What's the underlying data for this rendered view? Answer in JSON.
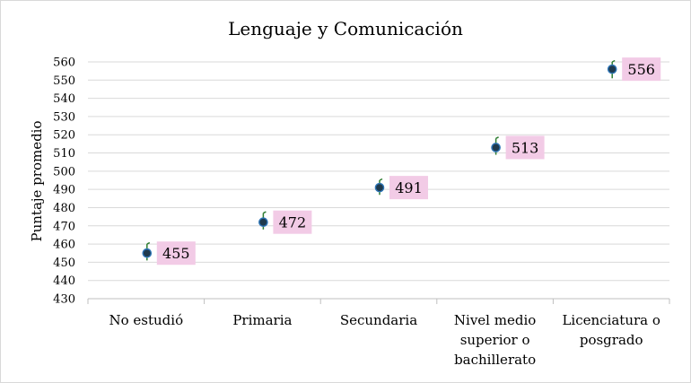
{
  "chart_data": {
    "type": "scatter",
    "title": "Lenguaje y Comunicación",
    "xlabel": "",
    "ylabel": "Puntaje promedio",
    "ylim": [
      430,
      560
    ],
    "yticks": [
      430,
      440,
      450,
      460,
      470,
      480,
      490,
      500,
      510,
      520,
      530,
      540,
      550,
      560
    ],
    "categories": [
      [
        "No estudió"
      ],
      [
        "Primaria"
      ],
      [
        "Secundaria"
      ],
      [
        "Nivel medio",
        "superior o",
        "bachillerato"
      ],
      [
        "Licenciatura o",
        "posgrado"
      ]
    ],
    "values": [
      455,
      472,
      491,
      513,
      556
    ],
    "error_low": [
      451,
      468,
      487,
      509,
      551
    ],
    "error_high": [
      460,
      477,
      495,
      518,
      560
    ],
    "grid": true,
    "colors": {
      "marker_fill": "#1f3a4d",
      "marker_edge": "#2e75b6",
      "error_bar": "#2e7d32",
      "label_bg": "#f2cbe6",
      "grid": "#d9d9d9"
    }
  }
}
